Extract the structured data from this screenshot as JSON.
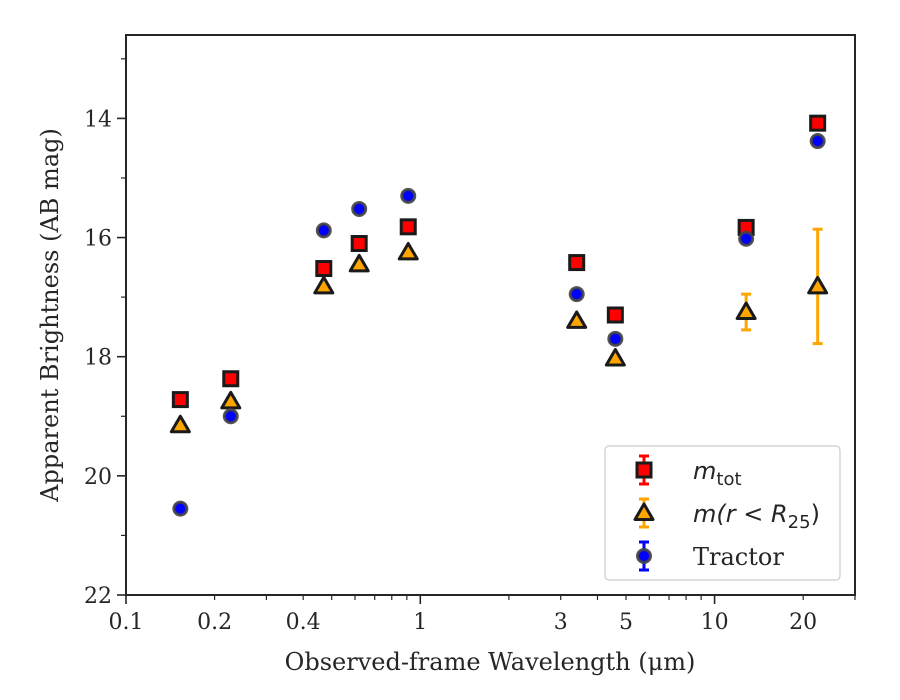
{
  "chart_data": {
    "type": "scatter",
    "title": "",
    "xlabel": "Observed-frame Wavelength (μm)",
    "ylabel": "Apparent Brightness (AB mag)",
    "xscale": "log",
    "xlim": [
      0.1,
      30
    ],
    "ylim": [
      22,
      12.6
    ],
    "y_inverted": true,
    "grid": false,
    "legend_position": "lower-right",
    "x_tick_labels": [
      "0.1",
      "0.2",
      "0.4",
      "1",
      "3",
      "5",
      "10",
      "20"
    ],
    "y_tick_labels": [
      "14",
      "16",
      "18",
      "20",
      "22"
    ],
    "series": [
      {
        "name": "m_tot",
        "legend": {
          "base": "m",
          "sub": "tot"
        },
        "marker": "square",
        "fill": "#ff0000",
        "edge": "#1a1a1a",
        "errcolor": "#ff0000",
        "points": [
          {
            "x": 0.153,
            "y": 18.72,
            "err": 0.06
          },
          {
            "x": 0.227,
            "y": 18.37,
            "err": 0.05
          },
          {
            "x": 0.47,
            "y": 16.52,
            "err": 0.03
          },
          {
            "x": 0.62,
            "y": 16.1,
            "err": 0.03
          },
          {
            "x": 0.91,
            "y": 15.82,
            "err": 0.03
          },
          {
            "x": 3.4,
            "y": 16.42,
            "err": 0.03
          },
          {
            "x": 4.6,
            "y": 17.3,
            "err": 0.03
          },
          {
            "x": 12.8,
            "y": 15.83,
            "err": 0.05
          },
          {
            "x": 22.4,
            "y": 14.08,
            "err": 0.05
          }
        ]
      },
      {
        "name": "m(r < R_25)",
        "legend": {
          "prefix": "m(r < R",
          "sub": "25",
          "suffix": ")"
        },
        "marker": "triangle",
        "fill": "#ffa500",
        "edge": "#1a1a1a",
        "errcolor": "#ffa500",
        "points": [
          {
            "x": 0.153,
            "y": 19.15,
            "err": 0.05
          },
          {
            "x": 0.227,
            "y": 18.75,
            "err": 0.05
          },
          {
            "x": 0.47,
            "y": 16.82,
            "err": 0.03
          },
          {
            "x": 0.62,
            "y": 16.45,
            "err": 0.03
          },
          {
            "x": 0.91,
            "y": 16.25,
            "err": 0.03
          },
          {
            "x": 3.4,
            "y": 17.4,
            "err": 0.03
          },
          {
            "x": 4.6,
            "y": 18.03,
            "err": 0.04
          },
          {
            "x": 12.8,
            "y": 17.25,
            "err": 0.3
          },
          {
            "x": 22.4,
            "y": 16.82,
            "err": 0.96
          }
        ]
      },
      {
        "name": "Tractor",
        "marker": "circle",
        "fill": "#0000ff",
        "edge": "#444444",
        "errcolor": "#0000ff",
        "points": [
          {
            "x": 0.153,
            "y": 20.55,
            "err": 0.06
          },
          {
            "x": 0.227,
            "y": 19.0,
            "err": 0.05
          },
          {
            "x": 0.47,
            "y": 15.88,
            "err": 0.03
          },
          {
            "x": 0.62,
            "y": 15.52,
            "err": 0.03
          },
          {
            "x": 0.91,
            "y": 15.3,
            "err": 0.03
          },
          {
            "x": 3.4,
            "y": 16.95,
            "err": 0.03
          },
          {
            "x": 4.6,
            "y": 17.7,
            "err": 0.05
          },
          {
            "x": 12.8,
            "y": 16.02,
            "err": 0.05
          },
          {
            "x": 22.4,
            "y": 14.38,
            "err": 0.05
          }
        ]
      }
    ]
  }
}
